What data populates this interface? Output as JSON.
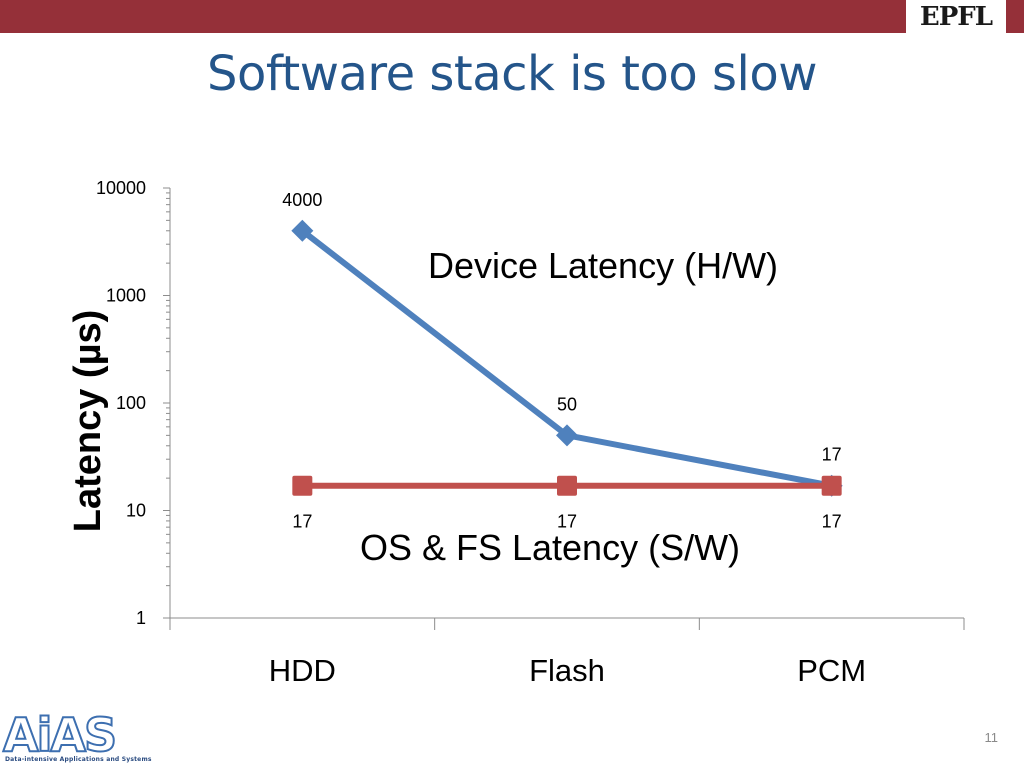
{
  "slide": {
    "title": "Software stack is too slow",
    "logo_text": "EPFL",
    "footer_logo": "AiAS",
    "footer_logo_subtitle": "Data-intensive Applications and Systems",
    "page_number": "11"
  },
  "colors": {
    "top_bar": "#953039",
    "title": "#24558a",
    "series_hw": "#4f81bd",
    "series_sw": "#c0504d"
  },
  "chart_data": {
    "type": "line",
    "ylabel": "Latency (µs)",
    "xlabel": "",
    "yscale": "log",
    "ylim": [
      1,
      10000
    ],
    "yticks": [
      "1",
      "10",
      "100",
      "1000",
      "10000"
    ],
    "categories": [
      "HDD",
      "Flash",
      "PCM"
    ],
    "series": [
      {
        "name": "Device Latency (H/W)",
        "values": [
          4000,
          50,
          17
        ],
        "labels": [
          "4000",
          "50",
          "17"
        ],
        "marker": "diamond",
        "color": "#4f81bd",
        "label_position": "above"
      },
      {
        "name": "OS & FS Latency (S/W)",
        "values": [
          17,
          17,
          17
        ],
        "labels": [
          "17",
          "17",
          "17"
        ],
        "marker": "square",
        "color": "#c0504d",
        "label_position": "below"
      }
    ],
    "legend": "inline annotations"
  }
}
